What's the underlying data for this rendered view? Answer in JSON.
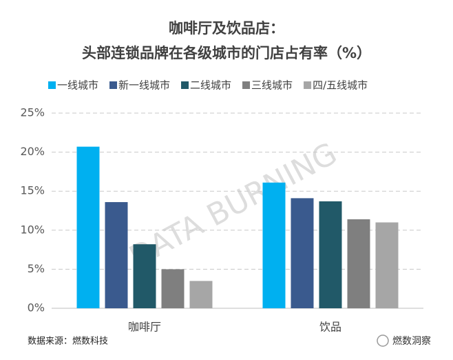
{
  "chart_data": {
    "type": "bar",
    "title": "咖啡厅及饮品店：",
    "subtitle": "头部连锁品牌在各级城市的门店占有率（%）",
    "categories": [
      "咖啡厅",
      "饮品"
    ],
    "series": [
      {
        "name": "一线城市",
        "color": "#00b0f0",
        "values": [
          20.7,
          16.1
        ]
      },
      {
        "name": "新一线城市",
        "color": "#3a5a8e",
        "values": [
          13.6,
          14.1
        ]
      },
      {
        "name": "二线城市",
        "color": "#215968",
        "values": [
          8.2,
          13.7
        ]
      },
      {
        "name": "三线城市",
        "color": "#7f7f7f",
        "values": [
          5.0,
          11.4
        ]
      },
      {
        "name": "四/五线城市",
        "color": "#a6a6a6",
        "values": [
          3.5,
          11.0
        ]
      }
    ],
    "ylim": [
      0,
      25
    ],
    "yticks": [
      {
        "value": 0,
        "label": "0%"
      },
      {
        "value": 5,
        "label": "5%"
      },
      {
        "value": 10,
        "label": "10%"
      },
      {
        "value": 15,
        "label": "15%"
      },
      {
        "value": 20,
        "label": "20%"
      },
      {
        "value": 25,
        "label": "25%"
      }
    ],
    "grid": true,
    "legend": "top",
    "watermark": "DATA BURNING",
    "source": "数据来源：燃数科技",
    "logo": "燃数洞察"
  }
}
